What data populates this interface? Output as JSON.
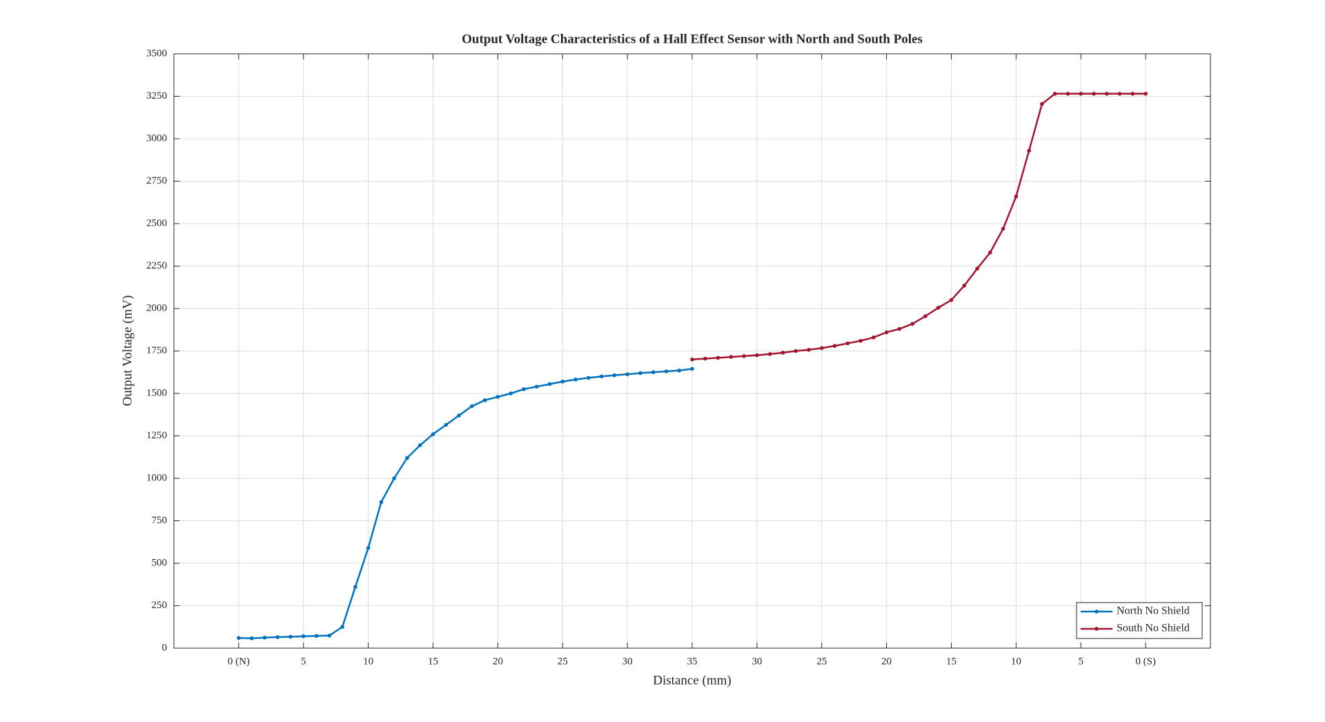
{
  "chart_data": {
    "type": "line",
    "title": "Output Voltage Characteristics of a Hall Effect Sensor with North and South Poles",
    "xlabel": "Distance (mm)",
    "ylabel": "Output Voltage (mV)",
    "xlim": [
      -5,
      75
    ],
    "xticks": [
      {
        "value": 0,
        "label": "0 (N)"
      },
      5,
      10,
      15,
      20,
      25,
      30,
      35,
      {
        "value": 40,
        "label": "30"
      },
      {
        "value": 45,
        "label": "25"
      },
      {
        "value": 50,
        "label": "20"
      },
      {
        "value": 55,
        "label": "15"
      },
      {
        "value": 60,
        "label": "10"
      },
      {
        "value": 65,
        "label": "5"
      },
      {
        "value": 70,
        "label": "0 (S)"
      }
    ],
    "ylim": [
      0,
      3500
    ],
    "yticks": [
      0,
      250,
      500,
      750,
      1000,
      1250,
      1500,
      1750,
      2000,
      2250,
      2500,
      2750,
      3000,
      3250,
      3500
    ],
    "grid": true,
    "legend": "lower right",
    "series": [
      {
        "name": "North No Shield",
        "color": "#0072bd",
        "x": [
          0,
          1,
          2,
          3,
          4,
          5,
          6,
          7,
          8,
          9,
          10,
          11,
          12,
          13,
          14,
          15,
          16,
          17,
          18,
          19,
          20,
          21,
          22,
          23,
          24,
          25,
          26,
          27,
          28,
          29,
          30,
          31,
          32,
          33,
          34,
          35
        ],
        "values": [
          60,
          58,
          62,
          65,
          67,
          70,
          72,
          74,
          125,
          360,
          590,
          860,
          1000,
          1120,
          1195,
          1260,
          1315,
          1370,
          1425,
          1460,
          1480,
          1500,
          1525,
          1540,
          1555,
          1570,
          1582,
          1592,
          1600,
          1607,
          1613,
          1620,
          1625,
          1630,
          1635,
          1645
        ]
      },
      {
        "name": "South No Shield",
        "color": "#a2142f",
        "x": [
          35,
          36,
          37,
          38,
          39,
          40,
          41,
          42,
          43,
          44,
          45,
          46,
          47,
          48,
          49,
          50,
          51,
          52,
          53,
          54,
          55,
          56,
          57,
          58,
          59,
          60,
          61,
          62,
          63,
          64,
          65,
          66,
          67,
          68,
          69,
          70
        ],
        "values": [
          1700,
          1705,
          1710,
          1715,
          1720,
          1725,
          1732,
          1740,
          1750,
          1757,
          1767,
          1780,
          1795,
          1810,
          1830,
          1860,
          1880,
          1910,
          1955,
          2005,
          2050,
          2135,
          2235,
          2330,
          2470,
          2660,
          2930,
          3205,
          3265,
          3265,
          3265,
          3265,
          3265,
          3265,
          3265,
          3265
        ]
      }
    ]
  }
}
